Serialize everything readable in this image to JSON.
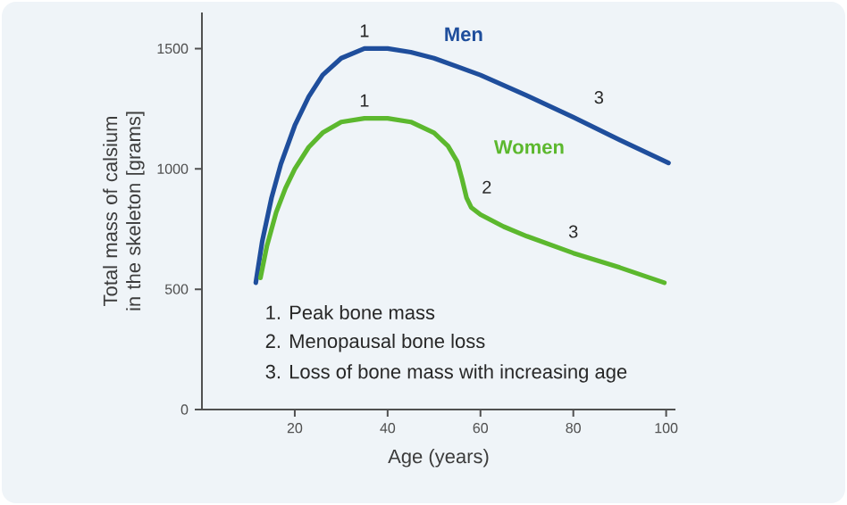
{
  "chart_data": {
    "type": "line",
    "xlabel": "Age (years)",
    "ylabel": "Total mass of calsium in the skeleton [grams]",
    "xlim": [
      0,
      102
    ],
    "ylim": [
      0,
      1650
    ],
    "xticks": [
      20,
      40,
      60,
      80,
      100
    ],
    "yticks": [
      0,
      500,
      1000,
      1500
    ],
    "series": [
      {
        "name": "Men",
        "color": "#1f4e9c",
        "x": [
          11.6,
          13,
          15,
          17,
          20,
          23,
          26,
          30,
          35,
          40,
          45,
          50,
          60,
          70,
          80,
          90,
          100.5
        ],
        "values": [
          527,
          700,
          880,
          1020,
          1180,
          1300,
          1390,
          1460,
          1500,
          1500,
          1485,
          1460,
          1390,
          1305,
          1215,
          1120,
          1025
        ]
      },
      {
        "name": "Women",
        "color": "#5cb82e",
        "x": [
          12.6,
          14,
          16,
          18,
          20,
          23,
          26,
          30,
          35,
          40,
          45,
          50,
          53,
          55,
          56,
          57,
          58,
          60,
          65,
          70,
          80,
          90,
          99.6
        ],
        "values": [
          547,
          680,
          820,
          920,
          1000,
          1090,
          1150,
          1195,
          1210,
          1210,
          1195,
          1150,
          1095,
          1030,
          960,
          880,
          840,
          810,
          760,
          720,
          650,
          590,
          527
        ]
      }
    ],
    "annotations": [
      {
        "text": "1",
        "x": 35,
        "y": 1500
      },
      {
        "text": "1",
        "x": 35,
        "y": 1210
      },
      {
        "text": "2",
        "x": 57,
        "y": 880
      },
      {
        "text": "3",
        "x": 80,
        "y": 1215
      },
      {
        "text": "3",
        "x": 80,
        "y": 650
      },
      "1. Peak bone mass",
      "2. Menopausal bone loss",
      "3. Loss of bone mass with increasing age"
    ]
  }
}
